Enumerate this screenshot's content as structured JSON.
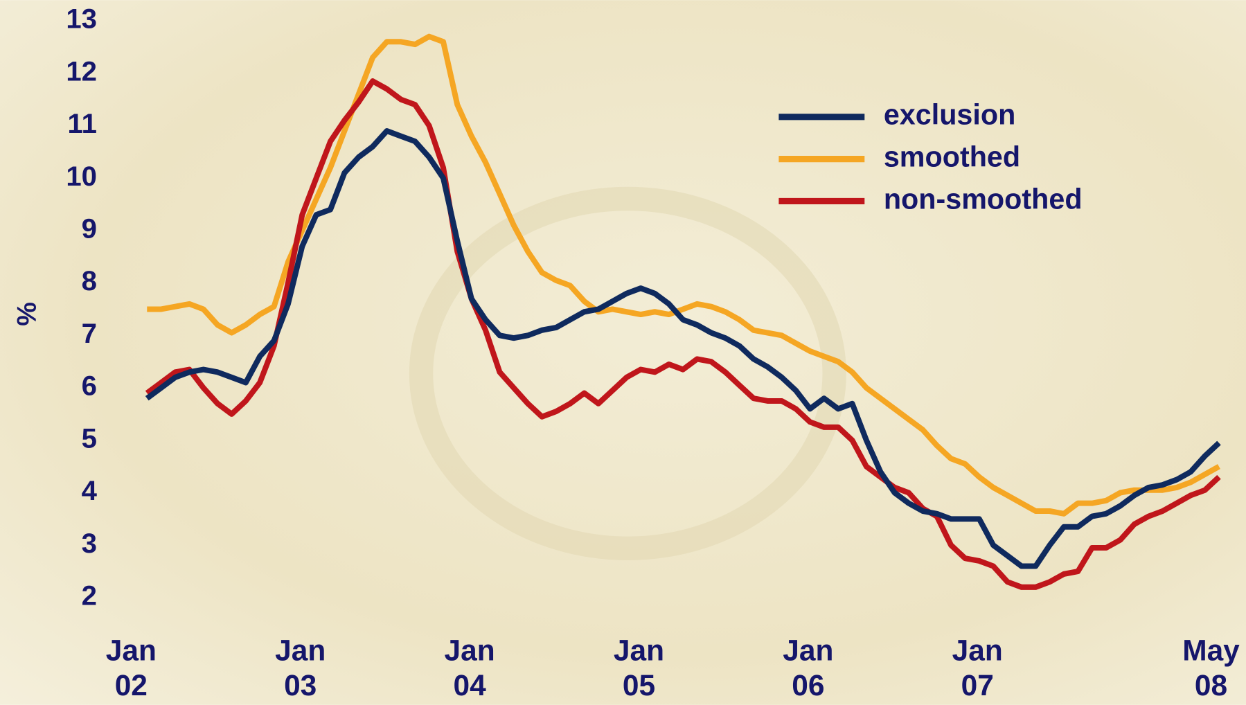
{
  "chart_data": {
    "type": "line",
    "y_label": "%",
    "categories": [
      "Jan 02",
      null,
      null,
      null,
      null,
      null,
      null,
      null,
      null,
      null,
      null,
      null,
      "Jan 03",
      null,
      null,
      null,
      null,
      null,
      null,
      null,
      null,
      null,
      null,
      null,
      "Jan 04",
      null,
      null,
      null,
      null,
      null,
      null,
      null,
      null,
      null,
      null,
      null,
      "Jan 05",
      null,
      null,
      null,
      null,
      null,
      null,
      null,
      null,
      null,
      null,
      null,
      "Jan 06",
      null,
      null,
      null,
      null,
      null,
      null,
      null,
      null,
      null,
      null,
      null,
      "Jan 07",
      null,
      null,
      null,
      null,
      null,
      null,
      null,
      null,
      null,
      null,
      null,
      null,
      null,
      null,
      null,
      "May 08"
    ],
    "series": [
      {
        "name": "exclusion",
        "color": "#0f2a5e",
        "values": [
          5.8,
          6.0,
          6.2,
          6.3,
          6.35,
          6.3,
          6.2,
          6.1,
          6.6,
          6.9,
          7.6,
          8.7,
          9.3,
          9.4,
          10.1,
          10.4,
          10.6,
          10.9,
          10.8,
          10.7,
          10.4,
          10.0,
          8.8,
          7.7,
          7.3,
          7.0,
          6.95,
          7.0,
          7.1,
          7.15,
          7.3,
          7.45,
          7.5,
          7.65,
          7.8,
          7.9,
          7.8,
          7.6,
          7.3,
          7.2,
          7.05,
          6.95,
          6.8,
          6.55,
          6.4,
          6.2,
          5.95,
          5.6,
          5.8,
          5.6,
          5.7,
          5.0,
          4.4,
          4.0,
          3.8,
          3.65,
          3.6,
          3.5,
          3.5,
          3.5,
          3.0,
          2.8,
          2.6,
          2.6,
          3.0,
          3.35,
          3.35,
          3.55,
          3.6,
          3.75,
          3.95,
          4.1,
          4.15,
          4.25,
          4.4,
          4.7,
          4.95
        ]
      },
      {
        "name": "smoothed",
        "color": "#f5a623",
        "values": [
          7.5,
          7.5,
          7.55,
          7.6,
          7.5,
          7.2,
          7.05,
          7.2,
          7.4,
          7.55,
          8.4,
          9.0,
          9.6,
          10.2,
          10.9,
          11.6,
          12.3,
          12.6,
          12.6,
          12.55,
          12.7,
          12.6,
          11.4,
          10.8,
          10.3,
          9.7,
          9.1,
          8.6,
          8.2,
          8.05,
          7.95,
          7.65,
          7.45,
          7.5,
          7.45,
          7.4,
          7.45,
          7.4,
          7.5,
          7.6,
          7.55,
          7.45,
          7.3,
          7.1,
          7.05,
          7.0,
          6.85,
          6.7,
          6.6,
          6.5,
          6.3,
          6.0,
          5.8,
          5.6,
          5.4,
          5.2,
          4.9,
          4.65,
          4.55,
          4.3,
          4.1,
          3.95,
          3.8,
          3.65,
          3.65,
          3.6,
          3.8,
          3.8,
          3.85,
          4.0,
          4.05,
          4.05,
          4.05,
          4.1,
          4.2,
          4.35,
          4.5
        ]
      },
      {
        "name": "non-smoothed",
        "color": "#c0161b",
        "values": [
          5.9,
          6.1,
          6.3,
          6.35,
          6.0,
          5.7,
          5.5,
          5.75,
          6.1,
          6.8,
          8.0,
          9.3,
          10.0,
          10.7,
          11.1,
          11.45,
          11.85,
          11.7,
          11.5,
          11.4,
          11.0,
          10.2,
          8.6,
          7.7,
          7.1,
          6.3,
          6.0,
          5.7,
          5.45,
          5.55,
          5.7,
          5.9,
          5.7,
          5.95,
          6.2,
          6.35,
          6.3,
          6.45,
          6.35,
          6.55,
          6.5,
          6.3,
          6.05,
          5.8,
          5.75,
          5.75,
          5.6,
          5.35,
          5.25,
          5.25,
          5.0,
          4.5,
          4.3,
          4.1,
          4.0,
          3.7,
          3.55,
          3.0,
          2.75,
          2.7,
          2.6,
          2.3,
          2.2,
          2.2,
          2.3,
          2.45,
          2.5,
          2.95,
          2.95,
          3.1,
          3.4,
          3.55,
          3.65,
          3.8,
          3.95,
          4.05,
          4.3
        ]
      }
    ],
    "ylim": [
      2,
      13
    ],
    "yticks": [
      2,
      3,
      4,
      5,
      6,
      7,
      8,
      9,
      10,
      11,
      12,
      13
    ],
    "legend": "upper-right"
  }
}
